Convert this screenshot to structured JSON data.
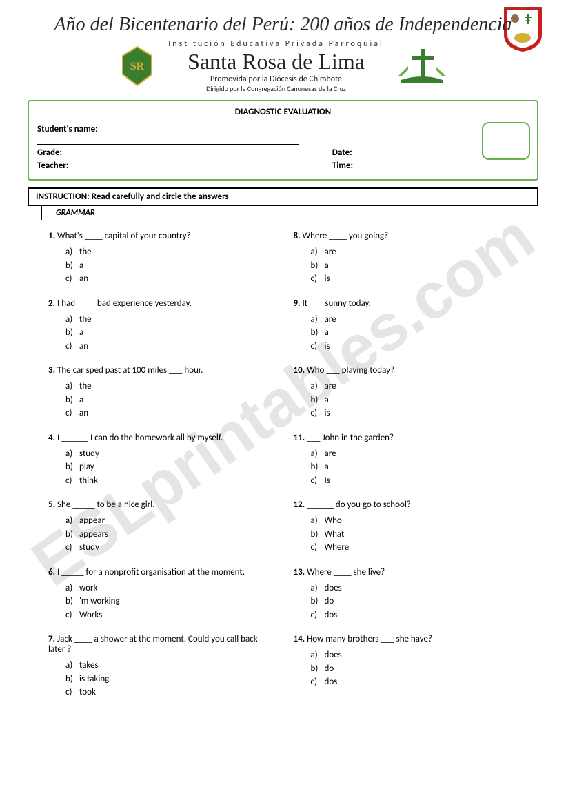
{
  "banner": "Año del Bicentenario del Perú: 200 años de Independencia",
  "institution_line": "Institución Educativa Privada Parroquial",
  "school_name": "Santa Rosa de Lima",
  "promovida": "Promovida por la Diócesis de Chimbote",
  "dirigido": "Dirigido por la Congregación Canonesas de la Cruz",
  "diagnostic_title": "DIAGNOSTIC EVALUATION",
  "labels": {
    "student_name": "Student's name:",
    "grade": "Grade:",
    "teacher": "Teacher:",
    "date": "Date:",
    "time": "Time:"
  },
  "instruction": "INSTRUCTION: Read carefully and circle the answers",
  "section_label": "GRAMMAR",
  "watermark": "ESLprintables.com",
  "colors": {
    "border_green": "#6ab04c",
    "text": "#000000",
    "watermark": "rgba(150,150,150,0.25)",
    "shield_red": "#c81e1e",
    "shield_white": "#ffffff",
    "logo_green": "#3a7d2e"
  },
  "questions_left": [
    {
      "n": "1.",
      "text": "What's ____ capital of your country?",
      "opts": [
        "the",
        "a",
        "an"
      ]
    },
    {
      "n": "2.",
      "text": "I had ____ bad experience yesterday.",
      "opts": [
        "the",
        "a",
        "an"
      ]
    },
    {
      "n": "3.",
      "text": "The car sped past at 100 miles ___ hour.",
      "opts": [
        "the",
        "a",
        "an"
      ]
    },
    {
      "n": "4.",
      "text": "I ______ I can do the homework all by myself.",
      "opts": [
        "study",
        "play",
        "think"
      ]
    },
    {
      "n": "5.",
      "text": "She _____ to be a nice girl.",
      "opts": [
        "appear",
        "appears",
        "study"
      ]
    },
    {
      "n": "6.",
      "text": "I _____ for a nonprofit organisation at the moment.",
      "opts": [
        "work",
        "'m working",
        "Works"
      ]
    },
    {
      "n": "7.",
      "text": "Jack ____ a shower at the moment. Could you call back later ?",
      "opts": [
        "takes",
        "is taking",
        "took"
      ]
    }
  ],
  "questions_right": [
    {
      "n": "8.",
      "text": "Where ____ you going?",
      "opts": [
        "are",
        "a",
        "is"
      ]
    },
    {
      "n": "9.",
      "text": "It ___ sunny today.",
      "opts": [
        "are",
        "a",
        "is"
      ]
    },
    {
      "n": "10.",
      "text": "Who ___ playing today?",
      "opts": [
        "are",
        "a",
        "is"
      ]
    },
    {
      "n": "11.",
      "text": "___ John in the garden?",
      "opts": [
        "are",
        "a",
        "Is"
      ]
    },
    {
      "n": "12.",
      "text": "______ do you go to school?",
      "opts": [
        "Who",
        "What",
        "Where"
      ]
    },
    {
      "n": "13.",
      "text": "Where ____ she live?",
      "opts": [
        "does",
        "do",
        "dos"
      ]
    },
    {
      "n": "14.",
      "text": "How many brothers ___ she have?",
      "opts": [
        "does",
        "do",
        "dos"
      ]
    }
  ],
  "option_letters": [
    "a)",
    "b)",
    "c)"
  ]
}
